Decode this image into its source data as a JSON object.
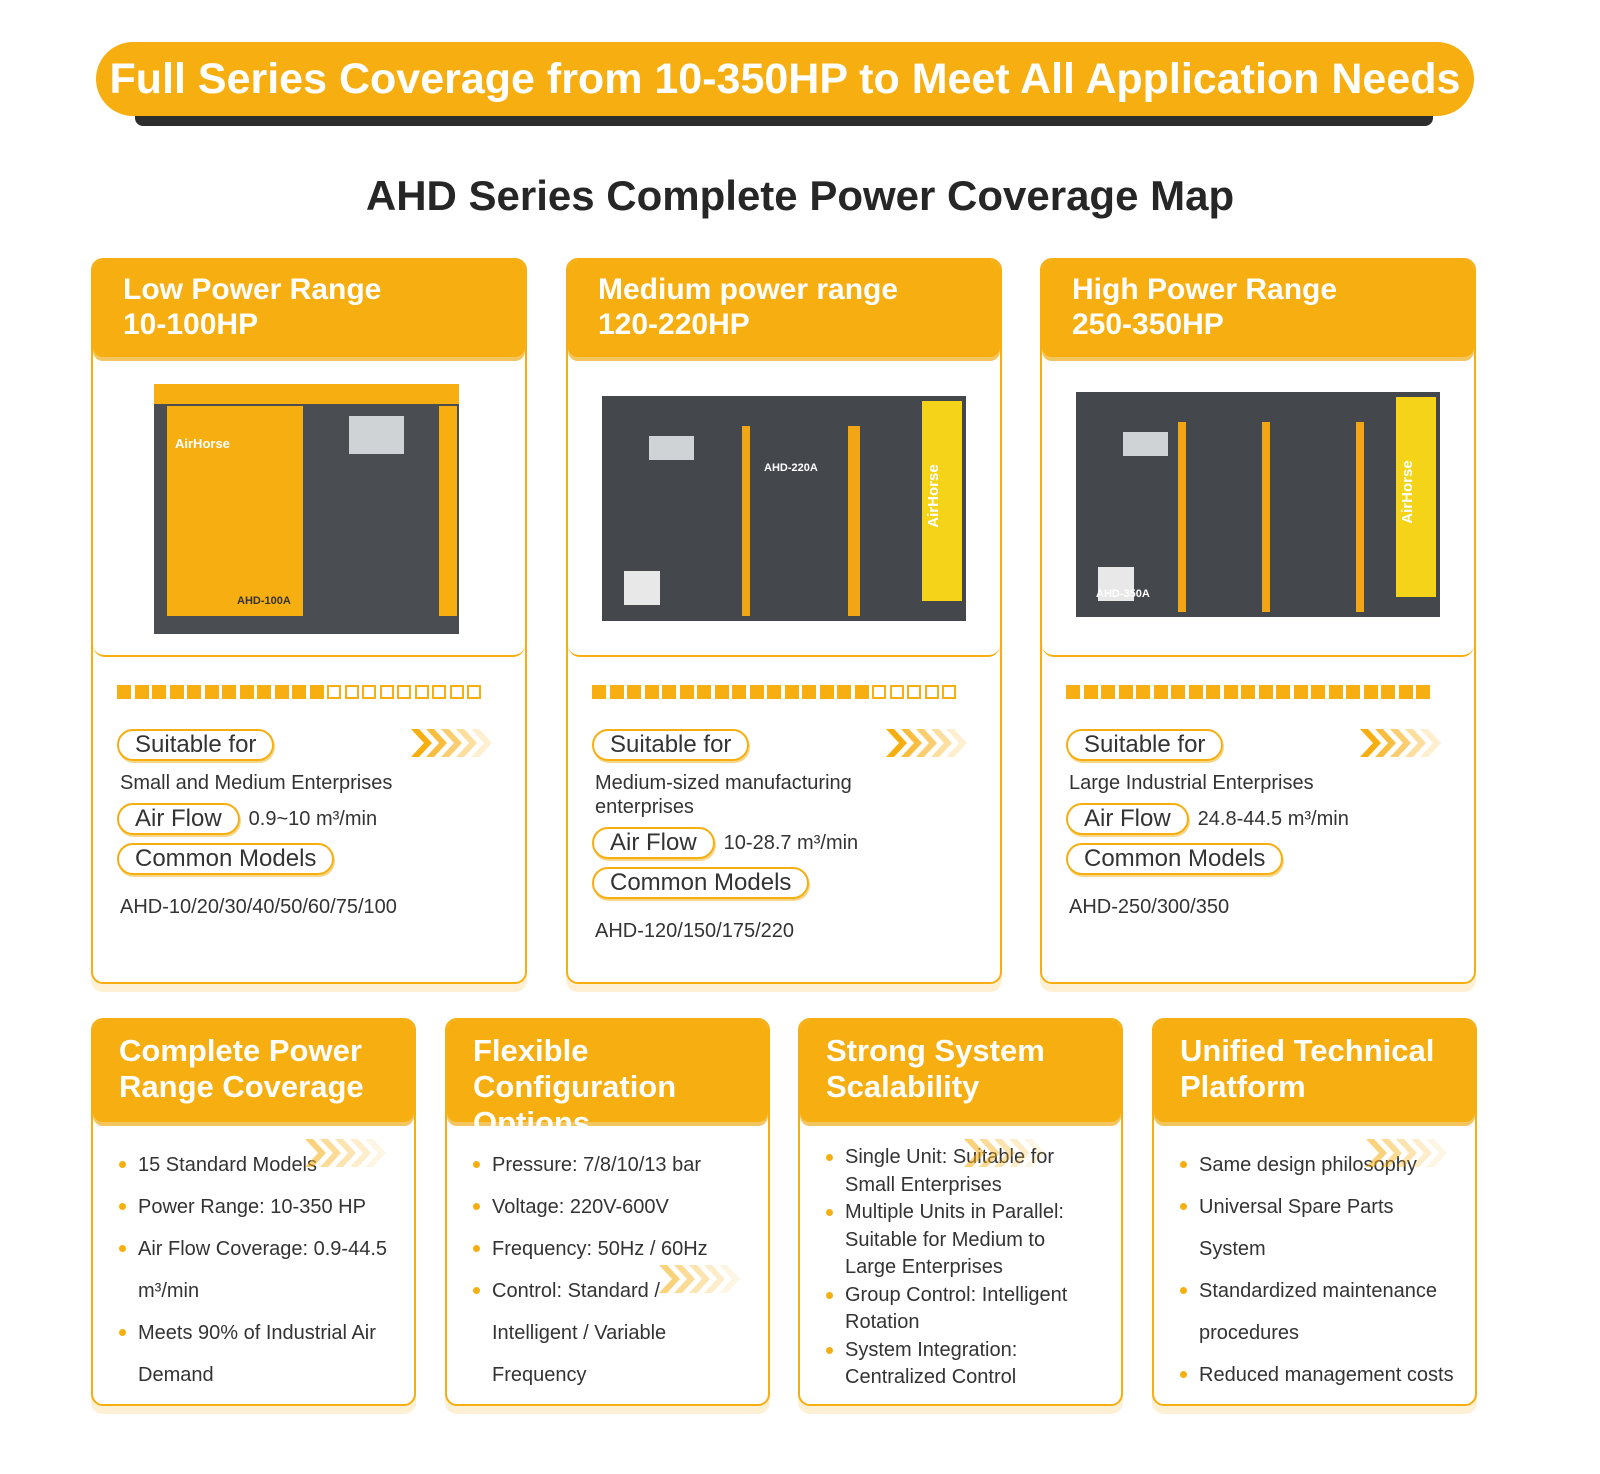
{
  "header": {
    "banner": "Full Series Coverage from 10-350HP to Meet All Application Needs",
    "title": "AHD Series Complete Power Coverage Map"
  },
  "ranges": [
    {
      "title": "Low Power Range",
      "range": "10-100HP",
      "image": {
        "brand": "AirHorse",
        "model": "AHD-100A"
      },
      "power_bar": {
        "filled": 12,
        "total": 21
      },
      "suitable_label": "Suitable for",
      "suitable": "Small and Medium Enterprises",
      "airflow_label": "Air Flow",
      "airflow": "0.9~10 m³/min",
      "models_label": "Common Models",
      "models": "AHD-10/20/30/40/50/60/75/100"
    },
    {
      "title": "Medium power range",
      "range": "120-220HP",
      "image": {
        "brand": "AirHorse",
        "model": "AHD-220A"
      },
      "power_bar": {
        "filled": 16,
        "total": 21
      },
      "suitable_label": "Suitable for",
      "suitable": "Medium-sized manufacturing enterprises",
      "airflow_label": "Air Flow",
      "airflow": "10-28.7 m³/min",
      "models_label": "Common Models",
      "models": "AHD-120/150/175/220"
    },
    {
      "title": "High Power Range",
      "range": "250-350HP",
      "image": {
        "brand": "AirHorse",
        "model": "AHD-350A"
      },
      "power_bar": {
        "filled": 21,
        "total": 21
      },
      "suitable_label": "Suitable for",
      "suitable": "Large Industrial Enterprises",
      "airflow_label": "Air Flow",
      "airflow": "24.8-44.5 m³/min",
      "models_label": "Common Models",
      "models": "AHD-250/300/350"
    }
  ],
  "features": [
    {
      "title": "Complete Power Range Coverage",
      "items": [
        "15 Standard Models",
        "Power Range: 10-350 HP",
        "Air Flow Coverage: 0.9-44.5 m³/min",
        "Meets 90% of Industrial Air Demand"
      ]
    },
    {
      "title": "Flexible Configuration Options",
      "items": [
        "Pressure: 7/8/10/13 bar",
        "Voltage: 220V-600V",
        "Frequency: 50Hz / 60Hz",
        "Control: Standard / Intelligent / Variable Frequency"
      ]
    },
    {
      "title": "Strong System Scalability",
      "items": [
        "Single Unit: Suitable for Small Enterprises",
        "Multiple Units in Parallel: Suitable for Medium to Large Enterprises",
        "Group Control: Intelligent Rotation",
        "System Integration: Centralized Control"
      ]
    },
    {
      "title": "Unified Technical Platform",
      "items": [
        "Same design philosophy",
        "Universal Spare Parts System",
        "Standardized maintenance procedures",
        "Reduced management costs"
      ]
    }
  ]
}
